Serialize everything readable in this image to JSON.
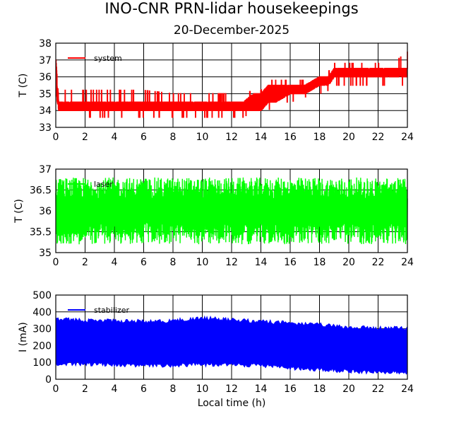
{
  "title": "INO-CNR PRN-lidar housekeepings",
  "subtitle": "20-December-2025",
  "xlabel": "Local time (h)",
  "chart_data": [
    {
      "type": "line",
      "name": "panel-system",
      "ylabel": "T (C)",
      "xlim": [
        0,
        24
      ],
      "ylim": [
        33,
        38
      ],
      "x_ticks": [
        "0",
        "2",
        "4",
        "6",
        "8",
        "10",
        "12",
        "14",
        "16",
        "18",
        "20",
        "22",
        "24"
      ],
      "y_ticks": [
        "33",
        "34",
        "35",
        "36",
        "37",
        "38"
      ],
      "grid": true,
      "legend_position": "top-left",
      "series": [
        {
          "name": "system",
          "color": "#ff0000",
          "style": "step-noise",
          "x": [
            0.0,
            0.2,
            2.0,
            4.0,
            6.0,
            8.0,
            10.0,
            12.0,
            12.8,
            13.5,
            14.0,
            14.5,
            15.0,
            16.0,
            17.0,
            18.0,
            18.6,
            19.0,
            20.0,
            21.0,
            22.0,
            23.0,
            24.0
          ],
          "y_low": [
            35.0,
            34.0,
            34.0,
            34.0,
            34.0,
            34.0,
            34.0,
            34.0,
            34.0,
            34.0,
            34.0,
            34.5,
            34.5,
            35.0,
            35.0,
            35.5,
            35.5,
            36.0,
            36.0,
            36.0,
            36.0,
            36.0,
            36.0
          ],
          "y_high": [
            37.0,
            34.5,
            34.5,
            34.5,
            34.5,
            34.5,
            34.5,
            34.5,
            34.5,
            35.0,
            35.0,
            35.5,
            35.5,
            35.5,
            35.5,
            36.0,
            36.0,
            36.5,
            36.5,
            36.5,
            36.5,
            36.5,
            36.5
          ],
          "y_spike_high": [
            37.5,
            35.2,
            35.2,
            35.2,
            35.2,
            35.0,
            35.0,
            35.0,
            35.0,
            35.2,
            35.2,
            35.8,
            35.8,
            35.8,
            35.8,
            36.3,
            36.3,
            36.8,
            36.8,
            36.8,
            36.8,
            36.8,
            37.5
          ],
          "y_spike_low": [
            34.0,
            33.6,
            33.6,
            33.6,
            33.6,
            33.6,
            33.6,
            33.6,
            33.6,
            34.0,
            34.0,
            34.0,
            34.5,
            34.5,
            34.8,
            35.0,
            35.2,
            35.5,
            35.5,
            35.5,
            35.5,
            35.5,
            35.5
          ]
        }
      ]
    },
    {
      "type": "line",
      "name": "panel-laser",
      "ylabel": "T (C)",
      "xlim": [
        0,
        24
      ],
      "ylim": [
        35,
        37
      ],
      "x_ticks": [
        "0",
        "2",
        "4",
        "6",
        "8",
        "10",
        "12",
        "14",
        "16",
        "18",
        "20",
        "22",
        "24"
      ],
      "y_ticks": [
        "35",
        "35.5",
        "36",
        "36.5",
        "37"
      ],
      "grid": true,
      "legend_position": "top-left",
      "series": [
        {
          "name": "laser",
          "color": "#00ff00",
          "style": "oscillation",
          "x": [
            0,
            24
          ],
          "y_mean": [
            36.0,
            36.0
          ],
          "y_amplitude": [
            0.8,
            0.8
          ],
          "y_range": [
            35.2,
            36.8
          ]
        }
      ]
    },
    {
      "type": "line",
      "name": "panel-stabilizer",
      "ylabel": "I (mA)",
      "xlim": [
        0,
        24
      ],
      "ylim": [
        0,
        500
      ],
      "x_ticks": [
        "0",
        "2",
        "4",
        "6",
        "8",
        "10",
        "12",
        "14",
        "16",
        "18",
        "20",
        "22",
        "24"
      ],
      "y_ticks": [
        "0",
        "100",
        "200",
        "300",
        "400",
        "500"
      ],
      "grid": true,
      "legend_position": "top-left",
      "series": [
        {
          "name": "stabilizer",
          "color": "#0000ff",
          "style": "band",
          "x": [
            0,
            2,
            4,
            6,
            8,
            10,
            12,
            14,
            16,
            18,
            20,
            22,
            24
          ],
          "y_upper": [
            370,
            360,
            360,
            355,
            360,
            375,
            365,
            355,
            345,
            335,
            320,
            315,
            315
          ],
          "y_lower": [
            80,
            80,
            75,
            70,
            70,
            75,
            75,
            70,
            55,
            45,
            35,
            30,
            30
          ]
        }
      ]
    }
  ]
}
